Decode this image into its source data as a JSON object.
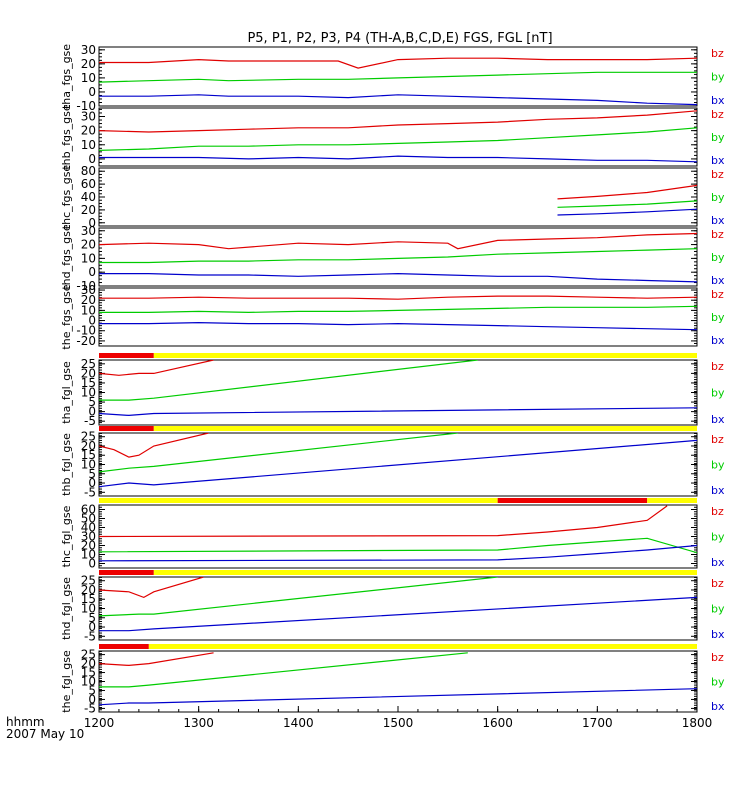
{
  "title": "P5, P1, P2, P3, P4 (TH-A,B,C,D,E) FGS, FGL [nT]",
  "time_label": "hhmm",
  "date_label": "2007 May 10",
  "colors": {
    "bz": "#e00000",
    "by": "#00cc00",
    "bx": "#0000cc",
    "flag_on": "#ee0000",
    "flag_off": "#ffff00"
  },
  "chart_data": {
    "type": "line",
    "xlim": [
      1200,
      1800
    ],
    "x_ticks": [
      "1200",
      "1300",
      "1400",
      "1500",
      "1600",
      "1700",
      "1800"
    ],
    "panels": [
      {
        "ylabel": "tha_fgs_gse",
        "ylim": [
          -10,
          32
        ],
        "yticks": [
          30,
          20,
          10,
          0,
          -10
        ],
        "ytick_labels": [
          "30",
          "20",
          "10",
          "0",
          "-10"
        ],
        "legend": [
          "bz",
          "by",
          "bx"
        ],
        "series": [
          {
            "name": "bz",
            "x": [
              1200,
              1250,
              1300,
              1330,
              1400,
              1440,
              1460,
              1500,
              1550,
              1600,
              1650,
              1700,
              1750,
              1800
            ],
            "y": [
              21,
              21,
              23,
              22,
              22,
              22,
              17,
              23,
              24,
              24,
              23,
              23,
              23,
              24
            ]
          },
          {
            "name": "by",
            "x": [
              1200,
              1250,
              1300,
              1330,
              1400,
              1450,
              1500,
              1550,
              1600,
              1650,
              1700,
              1750,
              1800
            ],
            "y": [
              7,
              8,
              9,
              8,
              9,
              9,
              10,
              11,
              12,
              13,
              14,
              14,
              14
            ]
          },
          {
            "name": "bx",
            "x": [
              1200,
              1250,
              1300,
              1330,
              1400,
              1450,
              1500,
              1550,
              1600,
              1650,
              1700,
              1750,
              1800
            ],
            "y": [
              -3,
              -3,
              -2,
              -3,
              -3,
              -4,
              -2,
              -3,
              -4,
              -5,
              -6,
              -8,
              -9
            ]
          }
        ]
      },
      {
        "ylabel": "thb_fgs_gse",
        "ylim": [
          -5,
          36
        ],
        "yticks": [
          30,
          20,
          10,
          0
        ],
        "ytick_labels": [
          "30",
          "20",
          "10",
          "0"
        ],
        "legend": [
          "bz",
          "by",
          "bx"
        ],
        "series": [
          {
            "name": "bz",
            "x": [
              1200,
              1250,
              1300,
              1350,
              1400,
              1450,
              1500,
              1550,
              1600,
              1650,
              1700,
              1750,
              1800
            ],
            "y": [
              20,
              19,
              20,
              21,
              22,
              22,
              24,
              25,
              26,
              28,
              29,
              31,
              34
            ]
          },
          {
            "name": "by",
            "x": [
              1200,
              1250,
              1300,
              1350,
              1400,
              1450,
              1500,
              1550,
              1600,
              1650,
              1700,
              1750,
              1800
            ],
            "y": [
              6,
              7,
              9,
              9,
              10,
              10,
              11,
              12,
              13,
              15,
              17,
              19,
              22
            ]
          },
          {
            "name": "bx",
            "x": [
              1200,
              1250,
              1300,
              1350,
              1400,
              1450,
              1500,
              1550,
              1600,
              1650,
              1700,
              1750,
              1800
            ],
            "y": [
              1,
              1,
              1,
              0,
              1,
              0,
              2,
              1,
              1,
              0,
              -1,
              -1,
              -2
            ]
          }
        ]
      },
      {
        "ylabel": "thc_fgs_gse",
        "ylim": [
          -5,
          85
        ],
        "yticks": [
          80,
          60,
          40,
          20,
          0
        ],
        "ytick_labels": [
          "80",
          "60",
          "40",
          "20",
          "0"
        ],
        "legend": [
          "bz",
          "by",
          "bx"
        ],
        "series": [
          {
            "name": "bz",
            "x": [
              1660,
              1700,
              1750,
              1800
            ],
            "y": [
              37,
              41,
              47,
              58
            ]
          },
          {
            "name": "by",
            "x": [
              1660,
              1700,
              1750,
              1800
            ],
            "y": [
              24,
              26,
              29,
              34
            ]
          },
          {
            "name": "bx",
            "x": [
              1660,
              1700,
              1750,
              1800
            ],
            "y": [
              12,
              14,
              17,
              21
            ]
          }
        ]
      },
      {
        "ylabel": "thd_fgs_gse",
        "ylim": [
          -10,
          32
        ],
        "yticks": [
          30,
          20,
          10,
          0,
          -10
        ],
        "ytick_labels": [
          "30",
          "20",
          "10",
          "0",
          "-10"
        ],
        "legend": [
          "bz",
          "by",
          "bx"
        ],
        "series": [
          {
            "name": "bz",
            "x": [
              1200,
              1250,
              1300,
              1330,
              1400,
              1450,
              1500,
              1550,
              1560,
              1600,
              1650,
              1700,
              1750,
              1800
            ],
            "y": [
              20,
              21,
              20,
              17,
              21,
              20,
              22,
              21,
              17,
              23,
              24,
              25,
              27,
              28
            ]
          },
          {
            "name": "by",
            "x": [
              1200,
              1250,
              1300,
              1350,
              1400,
              1450,
              1500,
              1550,
              1600,
              1650,
              1700,
              1750,
              1800
            ],
            "y": [
              7,
              7,
              8,
              8,
              9,
              9,
              10,
              11,
              13,
              14,
              15,
              16,
              17
            ]
          },
          {
            "name": "bx",
            "x": [
              1200,
              1250,
              1300,
              1350,
              1400,
              1450,
              1500,
              1550,
              1600,
              1650,
              1700,
              1750,
              1800
            ],
            "y": [
              -1,
              -1,
              -2,
              -2,
              -3,
              -2,
              -1,
              -2,
              -3,
              -3,
              -5,
              -6,
              -7
            ]
          }
        ]
      },
      {
        "ylabel": "the_fgs_gse",
        "ylim": [
          -25,
          32
        ],
        "yticks": [
          30,
          20,
          10,
          0,
          -10,
          -20
        ],
        "ytick_labels": [
          "30",
          "20",
          "10",
          "0",
          "-10",
          "-20"
        ],
        "legend": [
          "bz",
          "by",
          "bx"
        ],
        "series": [
          {
            "name": "bz",
            "x": [
              1200,
              1250,
              1300,
              1350,
              1400,
              1450,
              1500,
              1550,
              1600,
              1650,
              1700,
              1750,
              1800
            ],
            "y": [
              22,
              22,
              23,
              22,
              22,
              22,
              21,
              23,
              24,
              24,
              23,
              22,
              23
            ]
          },
          {
            "name": "by",
            "x": [
              1200,
              1250,
              1300,
              1350,
              1400,
              1450,
              1500,
              1550,
              1600,
              1650,
              1700,
              1750,
              1800
            ],
            "y": [
              8,
              8,
              9,
              8,
              9,
              9,
              10,
              11,
              12,
              13,
              13,
              13,
              14
            ]
          },
          {
            "name": "bx",
            "x": [
              1200,
              1250,
              1300,
              1350,
              1400,
              1450,
              1500,
              1550,
              1600,
              1650,
              1700,
              1750,
              1800
            ],
            "y": [
              -3,
              -3,
              -2,
              -3,
              -3,
              -4,
              -3,
              -4,
              -5,
              -6,
              -7,
              -8,
              -9
            ]
          }
        ]
      },
      {
        "ylabel": "tha_fgl_gse",
        "ylim": [
          -7,
          27
        ],
        "yticks": [
          25,
          20,
          15,
          10,
          5,
          0,
          -5
        ],
        "ytick_labels": [
          "25",
          "20",
          "15",
          "10",
          "5",
          "0",
          "-5"
        ],
        "legend": [
          "bz",
          "by",
          "bx"
        ],
        "flag": [
          {
            "start": 1200,
            "end": 1255,
            "on": true
          },
          {
            "start": 1255,
            "end": 1800,
            "on": false
          }
        ],
        "series": [
          {
            "name": "bz",
            "x": [
              1200,
              1220,
              1240,
              1255,
              1315
            ],
            "y": [
              20,
              19,
              20,
              20,
              27
            ]
          },
          {
            "name": "by",
            "x": [
              1200,
              1230,
              1255,
              1580
            ],
            "y": [
              6,
              6,
              7,
              27
            ]
          },
          {
            "name": "bx",
            "x": [
              1200,
              1230,
              1255,
              1800
            ],
            "y": [
              -1,
              -2,
              -1,
              2
            ]
          }
        ]
      },
      {
        "ylabel": "thb_fgl_gse",
        "ylim": [
          -7,
          27
        ],
        "yticks": [
          25,
          20,
          15,
          10,
          5,
          0,
          -5
        ],
        "ytick_labels": [
          "25",
          "20",
          "15",
          "10",
          "5",
          "0",
          "-5"
        ],
        "legend": [
          "bz",
          "by",
          "bx"
        ],
        "flag": [
          {
            "start": 1200,
            "end": 1255,
            "on": true
          },
          {
            "start": 1255,
            "end": 1800,
            "on": false
          }
        ],
        "series": [
          {
            "name": "bz",
            "x": [
              1200,
              1215,
              1230,
              1240,
              1255,
              1310
            ],
            "y": [
              20,
              18,
              14,
              15,
              20,
              27
            ]
          },
          {
            "name": "by",
            "x": [
              1200,
              1230,
              1255,
              1560
            ],
            "y": [
              6,
              8,
              9,
              27
            ]
          },
          {
            "name": "bx",
            "x": [
              1200,
              1230,
              1255,
              1800
            ],
            "y": [
              -2,
              0,
              -1,
              23
            ]
          }
        ]
      },
      {
        "ylabel": "thc_fgl_gse",
        "ylim": [
          -5,
          65
        ],
        "yticks": [
          60,
          50,
          40,
          30,
          20,
          10,
          0
        ],
        "ytick_labels": [
          "60",
          "50",
          "40",
          "30",
          "20",
          "10",
          "0"
        ],
        "legend": [
          "bz",
          "by",
          "bx"
        ],
        "flag": [
          {
            "start": 1200,
            "end": 1600,
            "on": false
          },
          {
            "start": 1600,
            "end": 1750,
            "on": true
          },
          {
            "start": 1750,
            "end": 1800,
            "on": false
          }
        ],
        "series": [
          {
            "name": "bz",
            "x": [
              1200,
              1600,
              1650,
              1700,
              1750,
              1770
            ],
            "y": [
              30,
              31,
              35,
              40,
              48,
              64
            ]
          },
          {
            "name": "by",
            "x": [
              1200,
              1600,
              1650,
              1700,
              1750,
              1800
            ],
            "y": [
              13,
              15,
              20,
              24,
              28,
              12
            ]
          },
          {
            "name": "bx",
            "x": [
              1200,
              1600,
              1650,
              1700,
              1750,
              1800
            ],
            "y": [
              3,
              4,
              7,
              11,
              15,
              20
            ]
          }
        ]
      },
      {
        "ylabel": "thd_fgl_gse",
        "ylim": [
          -7,
          27
        ],
        "yticks": [
          25,
          20,
          15,
          10,
          5,
          0,
          -5
        ],
        "ytick_labels": [
          "25",
          "20",
          "15",
          "10",
          "5",
          "0",
          "-5"
        ],
        "legend": [
          "bz",
          "by",
          "bx"
        ],
        "flag": [
          {
            "start": 1200,
            "end": 1255,
            "on": true
          },
          {
            "start": 1255,
            "end": 1800,
            "on": false
          }
        ],
        "series": [
          {
            "name": "bz",
            "x": [
              1200,
              1230,
              1245,
              1255,
              1305
            ],
            "y": [
              20,
              19,
              16,
              19,
              27
            ]
          },
          {
            "name": "by",
            "x": [
              1200,
              1240,
              1255,
              1600
            ],
            "y": [
              6,
              7,
              7,
              27
            ]
          },
          {
            "name": "bx",
            "x": [
              1200,
              1230,
              1255,
              1800
            ],
            "y": [
              -2,
              -2,
              -1,
              16
            ]
          }
        ]
      },
      {
        "ylabel": "the_fgl_gse",
        "ylim": [
          -7,
          27
        ],
        "yticks": [
          25,
          20,
          15,
          10,
          5,
          0,
          -5
        ],
        "ytick_labels": [
          "25",
          "20",
          "15",
          "10",
          "5",
          "0",
          "-5"
        ],
        "legend": [
          "bz",
          "by",
          "bx"
        ],
        "flag": [
          {
            "start": 1200,
            "end": 1250,
            "on": true
          },
          {
            "start": 1250,
            "end": 1800,
            "on": false
          }
        ],
        "series": [
          {
            "name": "bz",
            "x": [
              1200,
              1230,
              1250,
              1315
            ],
            "y": [
              20,
              19,
              20,
              26
            ]
          },
          {
            "name": "by",
            "x": [
              1200,
              1230,
              1250,
              1570
            ],
            "y": [
              7,
              7,
              8,
              26
            ]
          },
          {
            "name": "bx",
            "x": [
              1200,
              1230,
              1250,
              1800
            ],
            "y": [
              -3,
              -2,
              -2,
              6
            ]
          }
        ]
      }
    ]
  }
}
